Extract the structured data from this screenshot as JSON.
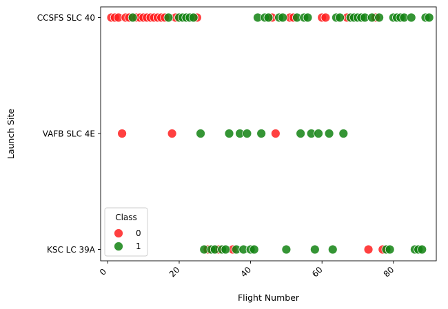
{
  "chart_data": {
    "type": "scatter",
    "title": "",
    "xlabel": "Flight Number",
    "ylabel": "Launch Site",
    "xlim": [
      -2,
      92
    ],
    "x_ticks": [
      0,
      20,
      40,
      60,
      80
    ],
    "categories": [
      "CCSFS SLC 40",
      "VAFB SLC 4E",
      "KSC LC 39A"
    ],
    "grid": false,
    "legend": {
      "title": "Class",
      "placement": "lower-left",
      "entries": [
        {
          "label": "0",
          "color": "#ff1f1f"
        },
        {
          "label": "1",
          "color": "#128212"
        }
      ]
    },
    "series": [
      {
        "name": "0",
        "color": "#ff1f1f",
        "points": [
          {
            "x": 1,
            "y": "CCSFS SLC 40"
          },
          {
            "x": 2,
            "y": "CCSFS SLC 40"
          },
          {
            "x": 3,
            "y": "CCSFS SLC 40"
          },
          {
            "x": 5,
            "y": "CCSFS SLC 40"
          },
          {
            "x": 6,
            "y": "CCSFS SLC 40"
          },
          {
            "x": 8,
            "y": "CCSFS SLC 40"
          },
          {
            "x": 9,
            "y": "CCSFS SLC 40"
          },
          {
            "x": 10,
            "y": "CCSFS SLC 40"
          },
          {
            "x": 11,
            "y": "CCSFS SLC 40"
          },
          {
            "x": 12,
            "y": "CCSFS SLC 40"
          },
          {
            "x": 13,
            "y": "CCSFS SLC 40"
          },
          {
            "x": 14,
            "y": "CCSFS SLC 40"
          },
          {
            "x": 15,
            "y": "CCSFS SLC 40"
          },
          {
            "x": 16,
            "y": "CCSFS SLC 40"
          },
          {
            "x": 19,
            "y": "CCSFS SLC 40"
          },
          {
            "x": 25,
            "y": "CCSFS SLC 40"
          },
          {
            "x": 46,
            "y": "CCSFS SLC 40"
          },
          {
            "x": 51,
            "y": "CCSFS SLC 40"
          },
          {
            "x": 52,
            "y": "CCSFS SLC 40"
          },
          {
            "x": 60,
            "y": "CCSFS SLC 40"
          },
          {
            "x": 61,
            "y": "CCSFS SLC 40"
          },
          {
            "x": 67,
            "y": "CCSFS SLC 40"
          },
          {
            "x": 75,
            "y": "CCSFS SLC 40"
          },
          {
            "x": 4,
            "y": "VAFB SLC 4E"
          },
          {
            "x": 18,
            "y": "VAFB SLC 4E"
          },
          {
            "x": 47,
            "y": "VAFB SLC 4E"
          },
          {
            "x": 28,
            "y": "KSC LC 39A"
          },
          {
            "x": 31,
            "y": "KSC LC 39A"
          },
          {
            "x": 35,
            "y": "KSC LC 39A"
          },
          {
            "x": 73,
            "y": "KSC LC 39A"
          },
          {
            "x": 77,
            "y": "KSC LC 39A"
          }
        ]
      },
      {
        "name": "1",
        "color": "#128212",
        "points": [
          {
            "x": 7,
            "y": "CCSFS SLC 40"
          },
          {
            "x": 17,
            "y": "CCSFS SLC 40"
          },
          {
            "x": 20,
            "y": "CCSFS SLC 40"
          },
          {
            "x": 21,
            "y": "CCSFS SLC 40"
          },
          {
            "x": 22,
            "y": "CCSFS SLC 40"
          },
          {
            "x": 23,
            "y": "CCSFS SLC 40"
          },
          {
            "x": 24,
            "y": "CCSFS SLC 40"
          },
          {
            "x": 42,
            "y": "CCSFS SLC 40"
          },
          {
            "x": 44,
            "y": "CCSFS SLC 40"
          },
          {
            "x": 45,
            "y": "CCSFS SLC 40"
          },
          {
            "x": 48,
            "y": "CCSFS SLC 40"
          },
          {
            "x": 49,
            "y": "CCSFS SLC 40"
          },
          {
            "x": 53,
            "y": "CCSFS SLC 40"
          },
          {
            "x": 55,
            "y": "CCSFS SLC 40"
          },
          {
            "x": 56,
            "y": "CCSFS SLC 40"
          },
          {
            "x": 64,
            "y": "CCSFS SLC 40"
          },
          {
            "x": 65,
            "y": "CCSFS SLC 40"
          },
          {
            "x": 68,
            "y": "CCSFS SLC 40"
          },
          {
            "x": 69,
            "y": "CCSFS SLC 40"
          },
          {
            "x": 70,
            "y": "CCSFS SLC 40"
          },
          {
            "x": 71,
            "y": "CCSFS SLC 40"
          },
          {
            "x": 72,
            "y": "CCSFS SLC 40"
          },
          {
            "x": 74,
            "y": "CCSFS SLC 40"
          },
          {
            "x": 76,
            "y": "CCSFS SLC 40"
          },
          {
            "x": 80,
            "y": "CCSFS SLC 40"
          },
          {
            "x": 81,
            "y": "CCSFS SLC 40"
          },
          {
            "x": 82,
            "y": "CCSFS SLC 40"
          },
          {
            "x": 83,
            "y": "CCSFS SLC 40"
          },
          {
            "x": 85,
            "y": "CCSFS SLC 40"
          },
          {
            "x": 89,
            "y": "CCSFS SLC 40"
          },
          {
            "x": 90,
            "y": "CCSFS SLC 40"
          },
          {
            "x": 26,
            "y": "VAFB SLC 4E"
          },
          {
            "x": 34,
            "y": "VAFB SLC 4E"
          },
          {
            "x": 37,
            "y": "VAFB SLC 4E"
          },
          {
            "x": 39,
            "y": "VAFB SLC 4E"
          },
          {
            "x": 43,
            "y": "VAFB SLC 4E"
          },
          {
            "x": 54,
            "y": "VAFB SLC 4E"
          },
          {
            "x": 57,
            "y": "VAFB SLC 4E"
          },
          {
            "x": 59,
            "y": "VAFB SLC 4E"
          },
          {
            "x": 62,
            "y": "VAFB SLC 4E"
          },
          {
            "x": 66,
            "y": "VAFB SLC 4E"
          },
          {
            "x": 27,
            "y": "KSC LC 39A"
          },
          {
            "x": 29,
            "y": "KSC LC 39A"
          },
          {
            "x": 30,
            "y": "KSC LC 39A"
          },
          {
            "x": 32,
            "y": "KSC LC 39A"
          },
          {
            "x": 33,
            "y": "KSC LC 39A"
          },
          {
            "x": 36,
            "y": "KSC LC 39A"
          },
          {
            "x": 38,
            "y": "KSC LC 39A"
          },
          {
            "x": 40,
            "y": "KSC LC 39A"
          },
          {
            "x": 41,
            "y": "KSC LC 39A"
          },
          {
            "x": 50,
            "y": "KSC LC 39A"
          },
          {
            "x": 58,
            "y": "KSC LC 39A"
          },
          {
            "x": 63,
            "y": "KSC LC 39A"
          },
          {
            "x": 78,
            "y": "KSC LC 39A"
          },
          {
            "x": 79,
            "y": "KSC LC 39A"
          },
          {
            "x": 86,
            "y": "KSC LC 39A"
          },
          {
            "x": 87,
            "y": "KSC LC 39A"
          },
          {
            "x": 88,
            "y": "KSC LC 39A"
          }
        ]
      }
    ]
  }
}
